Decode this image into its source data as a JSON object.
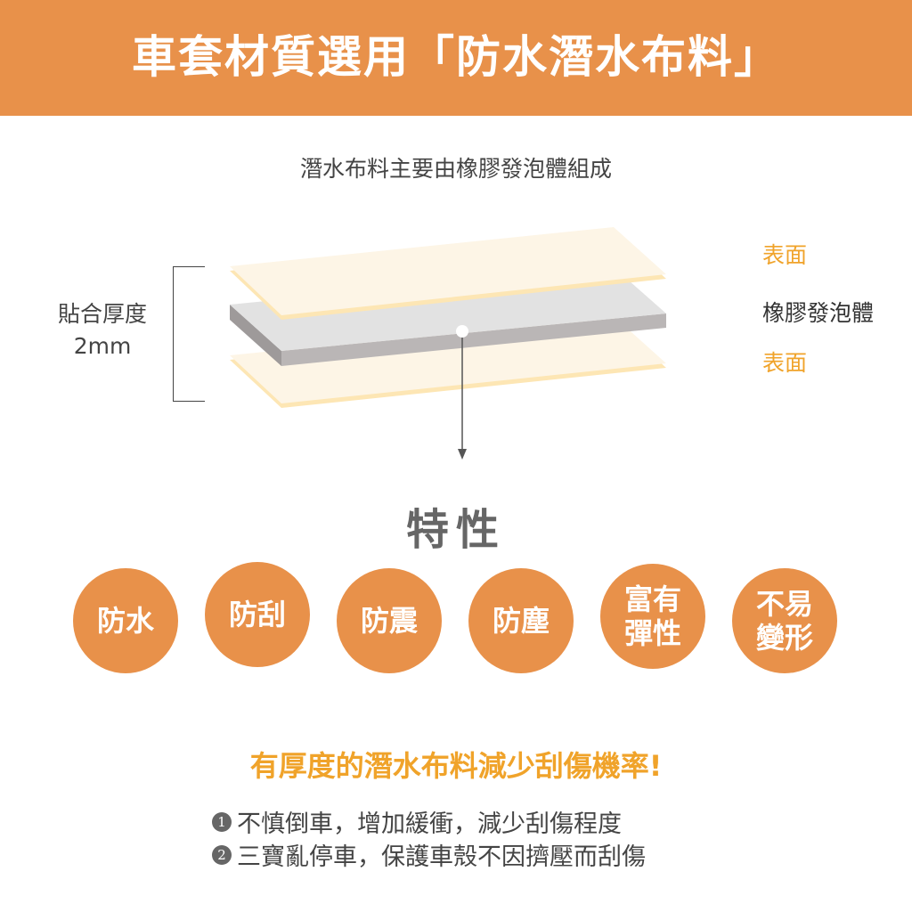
{
  "header": {
    "title": "車套材質選用「防水潛水布料」"
  },
  "subtitle": "潛水布料主要由橡膠發泡體組成",
  "diagram": {
    "thickness_label": "貼合厚度",
    "thickness_value": "2mm",
    "layers": [
      {
        "label": "表面",
        "color": "#F0A32A"
      },
      {
        "label": "橡膠發泡體",
        "color": "#333333"
      },
      {
        "label": "表面",
        "color": "#F0A32A"
      }
    ]
  },
  "features": {
    "title": "特性",
    "items": [
      {
        "line1": "防水",
        "line2": ""
      },
      {
        "line1": "防刮",
        "line2": ""
      },
      {
        "line1": "防震",
        "line2": ""
      },
      {
        "line1": "防塵",
        "line2": ""
      },
      {
        "line1": "富有",
        "line2": "彈性"
      },
      {
        "line1": "不易",
        "line2": "變形"
      }
    ],
    "color": "#E8914A"
  },
  "tagline": "有厚度的潛水布料減少刮傷機率!",
  "points": [
    {
      "num": "1",
      "text": "不慎倒車，增加緩衝，減少刮傷程度"
    },
    {
      "num": "2",
      "text": "三寶亂停車，保護車殼不因擠壓而刮傷"
    }
  ]
}
